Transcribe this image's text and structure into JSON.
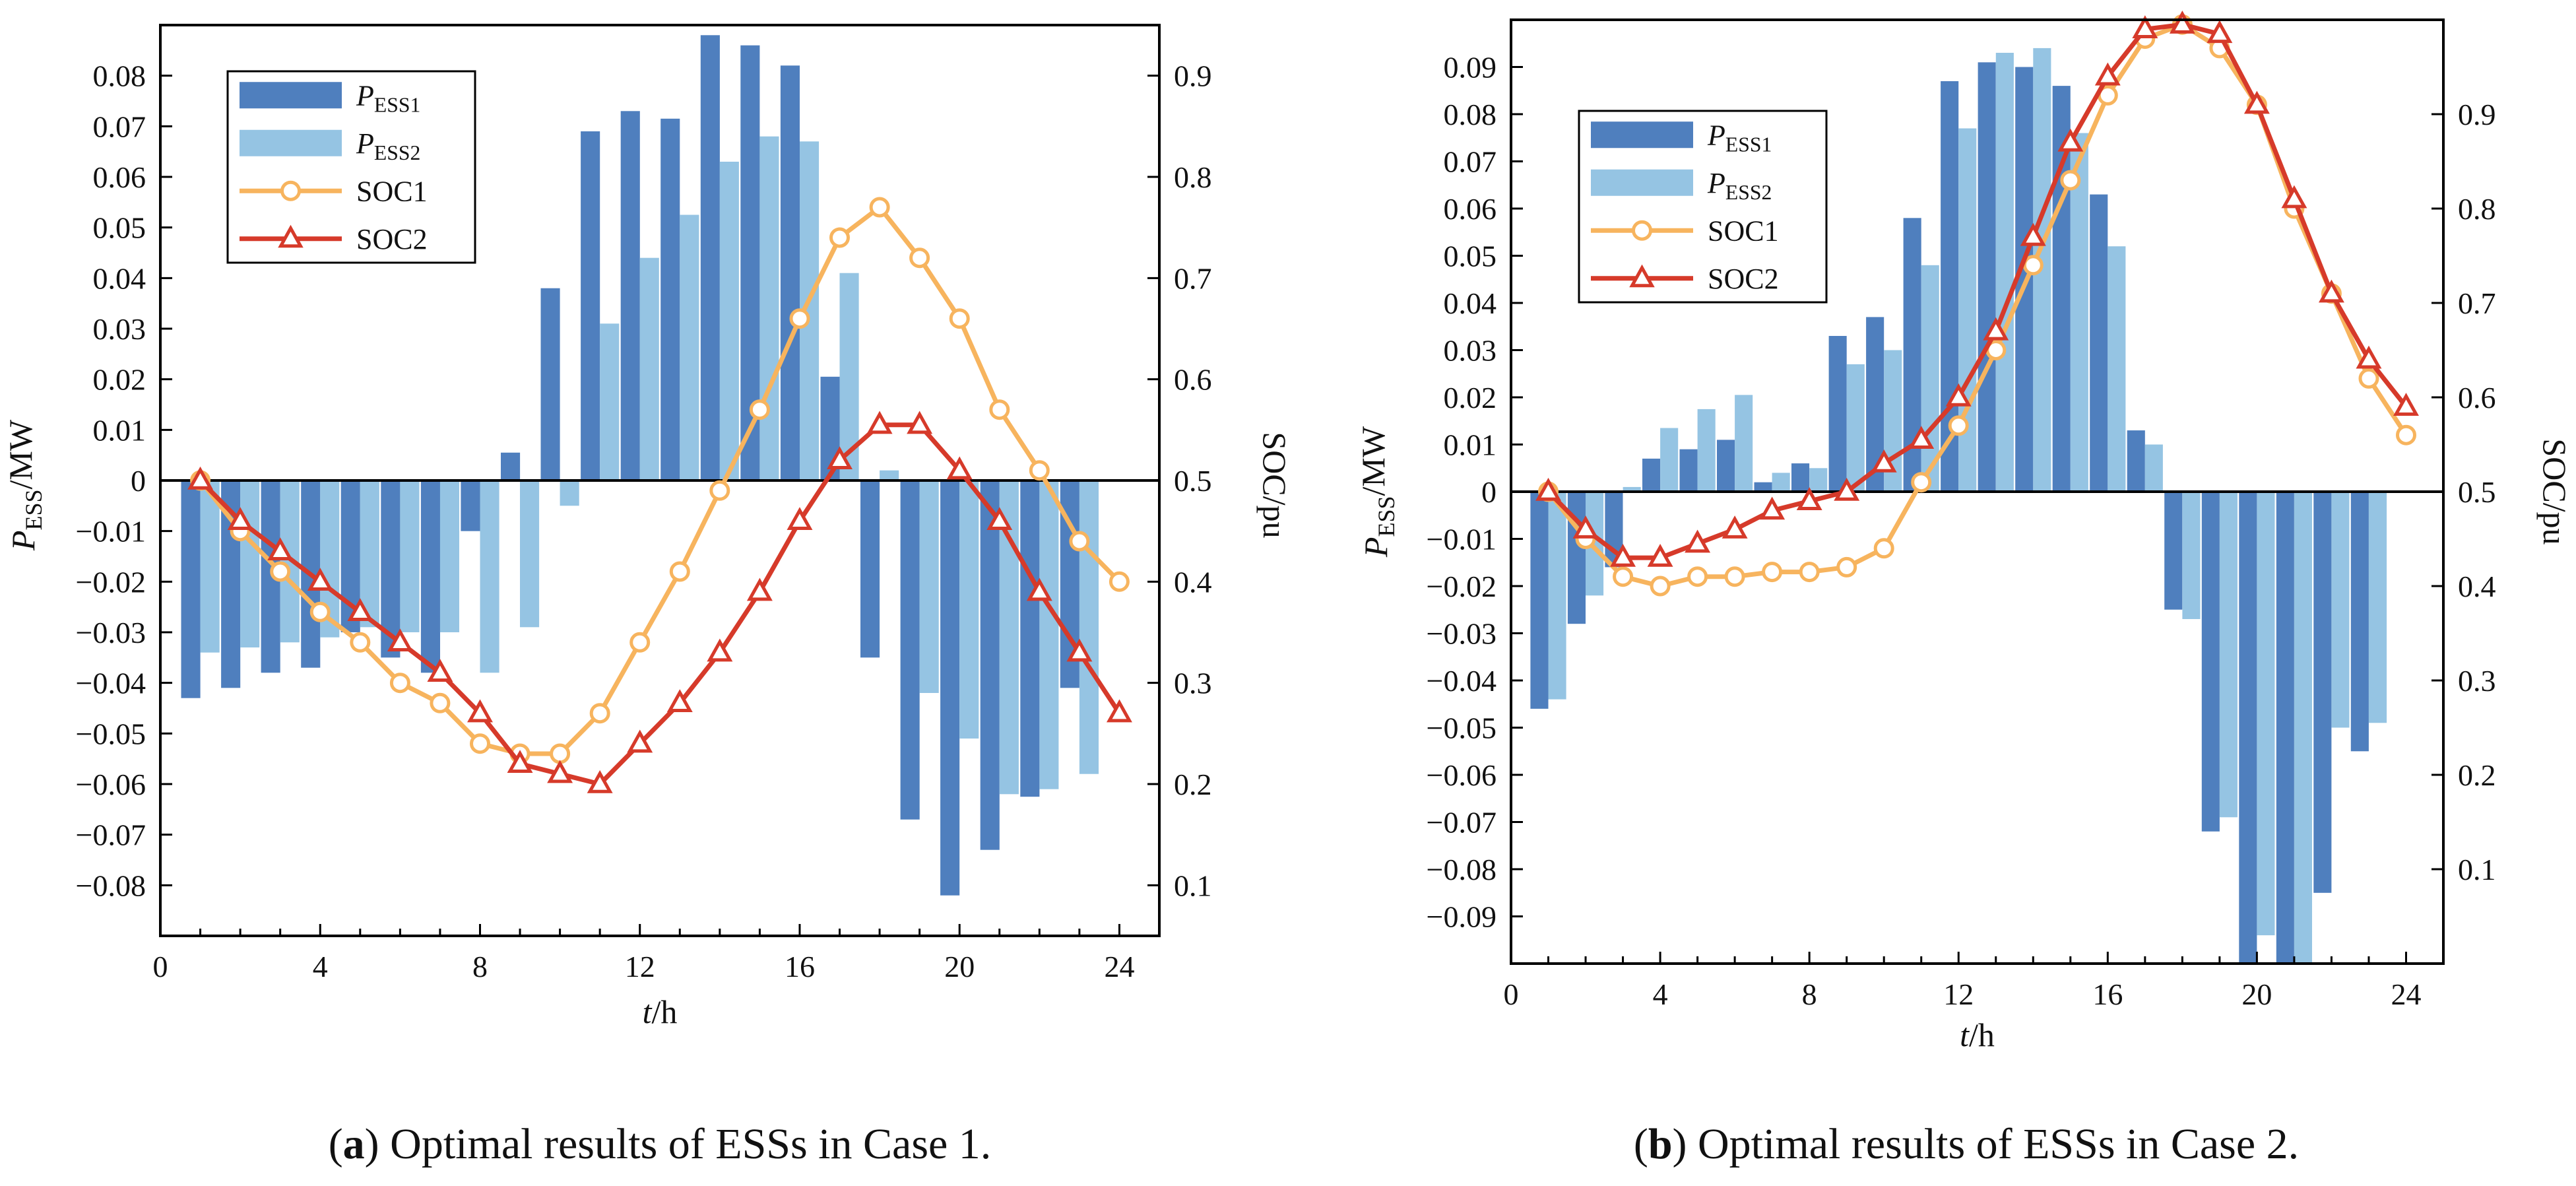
{
  "colors": {
    "ess1": "#4f7fbe",
    "ess2": "#95c4e3",
    "soc1": "#f7b45e",
    "soc2": "#d63a2a",
    "axis": "#222222"
  },
  "chart_data": [
    {
      "id": "a",
      "type": "bar+line",
      "caption_letter": "a",
      "caption_text": " Optimal results of ESSs in Case 1.",
      "xlabel": "t/h",
      "ylabel_left": "PESS/MW",
      "ylabel_right": "SOC/pu",
      "xlim": [
        0,
        25
      ],
      "xticks": [
        "0",
        "4",
        "8",
        "12",
        "16",
        "20",
        "24"
      ],
      "ylim_left": [
        -0.09,
        0.09
      ],
      "yticks_left": [
        "0.08",
        "0.07",
        "0.06",
        "0.05",
        "0.04",
        "0.03",
        "0.02",
        "0.01",
        "0",
        "−0.01",
        "−0.02",
        "−0.03",
        "−0.04",
        "−0.05",
        "−0.06",
        "−0.07",
        "−0.08"
      ],
      "ylim_right": [
        0.05,
        0.95
      ],
      "yticks_right": [
        "0.9",
        "0.8",
        "0.7",
        "0.6",
        "0.5",
        "0.4",
        "0.3",
        "0.2",
        "0.1"
      ],
      "legend": [
        "PESS1",
        "PESS2",
        "SOC1",
        "SOC2"
      ],
      "hours": [
        1,
        2,
        3,
        4,
        5,
        6,
        7,
        8,
        9,
        10,
        11,
        12,
        13,
        14,
        15,
        16,
        17,
        18,
        19,
        20,
        21,
        22,
        23,
        24
      ],
      "series": [
        {
          "name": "PESS1",
          "kind": "bar",
          "values": [
            -0.043,
            -0.041,
            -0.038,
            -0.037,
            -0.03,
            -0.035,
            -0.038,
            -0.01,
            0.0055,
            0.038,
            0.069,
            0.073,
            0.0715,
            0.088,
            0.086,
            0.082,
            0.0205,
            -0.035,
            -0.067,
            -0.082,
            -0.073,
            -0.0625,
            -0.041,
            0
          ]
        },
        {
          "name": "PESS2",
          "kind": "bar",
          "values": [
            -0.034,
            -0.033,
            -0.032,
            -0.031,
            -0.029,
            -0.03,
            -0.03,
            -0.038,
            -0.029,
            -0.005,
            0.031,
            0.044,
            0.0525,
            0.063,
            0.068,
            0.067,
            0.041,
            0.002,
            -0.042,
            -0.051,
            -0.062,
            -0.061,
            -0.058,
            0
          ]
        },
        {
          "name": "SOC1",
          "kind": "line",
          "marker": "circle",
          "values": [
            0.5,
            0.45,
            0.41,
            0.37,
            0.34,
            0.3,
            0.28,
            0.24,
            0.23,
            0.23,
            0.27,
            0.34,
            0.41,
            0.49,
            0.57,
            0.66,
            0.74,
            0.77,
            0.72,
            0.66,
            0.57,
            0.51,
            0.44,
            0.4
          ]
        },
        {
          "name": "SOC2",
          "kind": "line",
          "marker": "triangle",
          "values": [
            0.5,
            0.46,
            0.43,
            0.4,
            0.37,
            0.34,
            0.31,
            0.27,
            0.22,
            0.21,
            0.2,
            0.24,
            0.28,
            0.33,
            0.39,
            0.46,
            0.52,
            0.555,
            0.555,
            0.51,
            0.46,
            0.39,
            0.33,
            0.27
          ]
        }
      ]
    },
    {
      "id": "b",
      "type": "bar+line",
      "caption_letter": "b",
      "caption_text": " Optimal results of ESSs in Case 2.",
      "xlabel": "t/h",
      "ylabel_left": "PESS/MW",
      "ylabel_right": "SOC/pu",
      "xlim": [
        0,
        25
      ],
      "xticks": [
        "0",
        "4",
        "8",
        "12",
        "16",
        "20",
        "24"
      ],
      "ylim_left": [
        -0.1,
        0.1
      ],
      "yticks_left": [
        "0.09",
        "0.08",
        "0.07",
        "0.06",
        "0.05",
        "0.04",
        "0.03",
        "0.02",
        "0.01",
        "0",
        "−0.01",
        "−0.02",
        "−0.03",
        "−0.04",
        "−0.05",
        "−0.06",
        "−0.07",
        "−0.08",
        "−0.09"
      ],
      "ylim_right": [
        0.0,
        1.0
      ],
      "yticks_right": [
        "0.9",
        "0.8",
        "0.7",
        "0.6",
        "0.5",
        "0.4",
        "0.3",
        "0.2",
        "0.1"
      ],
      "legend": [
        "PESS1",
        "PESS2",
        "SOC1",
        "SOC2"
      ],
      "hours": [
        1,
        2,
        3,
        4,
        5,
        6,
        7,
        8,
        9,
        10,
        11,
        12,
        13,
        14,
        15,
        16,
        17,
        18,
        19,
        20,
        21,
        22,
        23,
        24
      ],
      "series": [
        {
          "name": "PESS1",
          "kind": "bar",
          "values": [
            -0.046,
            -0.028,
            -0.016,
            0.007,
            0.009,
            0.011,
            0.002,
            0.006,
            0.033,
            0.037,
            0.058,
            0.087,
            0.091,
            0.09,
            0.086,
            0.063,
            0.013,
            -0.025,
            -0.072,
            -0.1,
            -0.1,
            -0.085,
            -0.055,
            0
          ]
        },
        {
          "name": "PESS2",
          "kind": "bar",
          "values": [
            -0.044,
            -0.022,
            0.001,
            0.0135,
            0.0175,
            0.0205,
            0.004,
            0.005,
            0.027,
            0.03,
            0.048,
            0.077,
            0.093,
            0.094,
            0.076,
            0.052,
            0.01,
            -0.027,
            -0.069,
            -0.094,
            -0.1,
            -0.05,
            -0.049,
            0
          ]
        },
        {
          "name": "SOC1",
          "kind": "line",
          "marker": "circle",
          "values": [
            0.5,
            0.45,
            0.41,
            0.4,
            0.41,
            0.41,
            0.415,
            0.415,
            0.42,
            0.44,
            0.51,
            0.57,
            0.65,
            0.74,
            0.83,
            0.92,
            0.98,
            0.995,
            0.97,
            0.91,
            0.8,
            0.71,
            0.62,
            0.56
          ]
        },
        {
          "name": "SOC2",
          "kind": "line",
          "marker": "triangle",
          "values": [
            0.5,
            0.46,
            0.43,
            0.43,
            0.445,
            0.46,
            0.48,
            0.49,
            0.5,
            0.53,
            0.555,
            0.6,
            0.67,
            0.77,
            0.87,
            0.94,
            0.99,
            0.995,
            0.985,
            0.91,
            0.81,
            0.71,
            0.64,
            0.59
          ]
        }
      ]
    }
  ]
}
